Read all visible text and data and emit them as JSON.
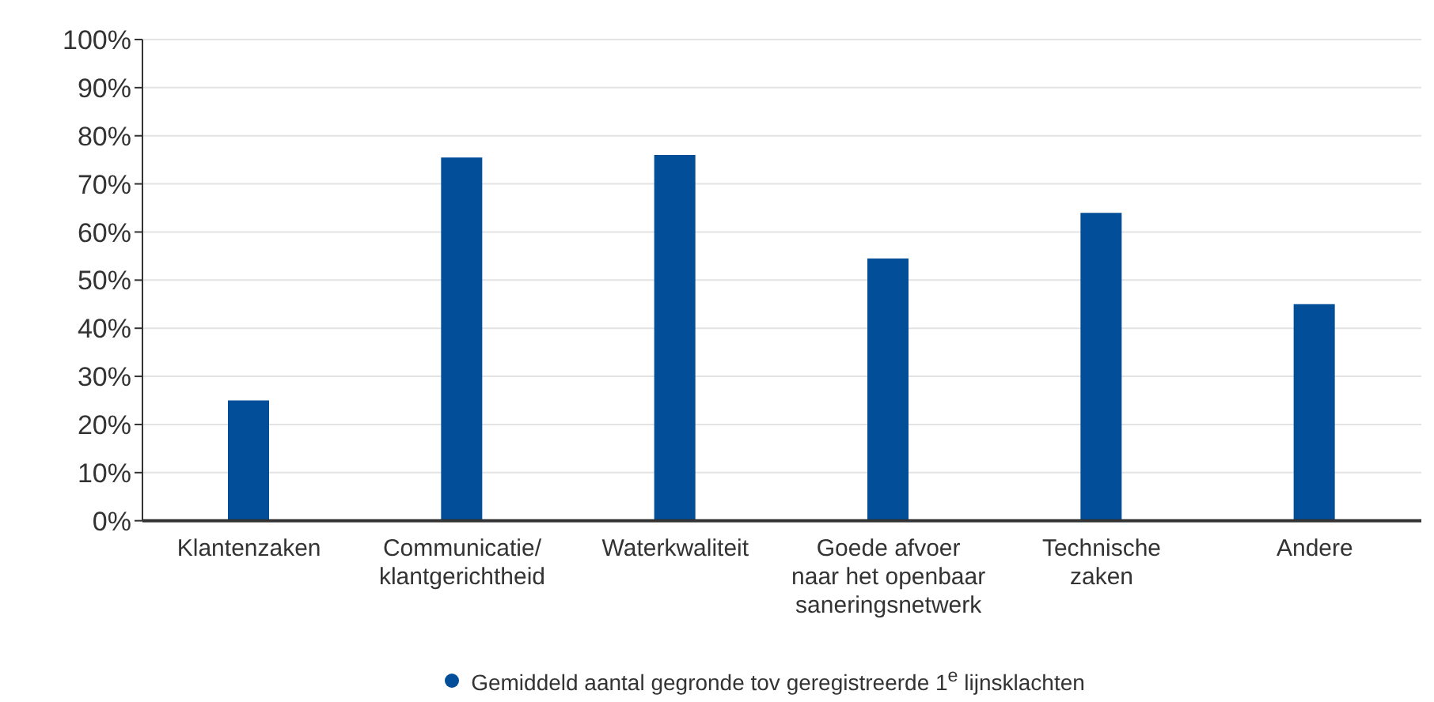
{
  "chart_data": {
    "type": "bar",
    "categories": [
      "Klantenzaken",
      "Communicatie/\nklantgerichtheid",
      "Waterkwaliteit",
      "Goede afvoer\nnaar het openbaar\nsaneringsnetwerk",
      "Technische\nzaken",
      "Andere"
    ],
    "series": [
      {
        "name": "Gemiddeld aantal gegronde tov geregistreerde 1$^{e}$ lijnsklachten",
        "color": "#024e99",
        "values": [
          25,
          75.5,
          76,
          54.5,
          64,
          45
        ]
      }
    ],
    "ylim": [
      0,
      100
    ],
    "yticks": [
      {
        "value": 0,
        "label": "0%"
      },
      {
        "value": 10,
        "label": "10%"
      },
      {
        "value": 20,
        "label": "20%"
      },
      {
        "value": 30,
        "label": "30%"
      },
      {
        "value": 40,
        "label": "40%"
      },
      {
        "value": 50,
        "label": "50%"
      },
      {
        "value": 60,
        "label": "60%"
      },
      {
        "value": 70,
        "label": "70%"
      },
      {
        "value": 80,
        "label": "80%"
      },
      {
        "value": 90,
        "label": "90%"
      },
      {
        "value": 100,
        "label": "100%"
      }
    ],
    "grid": "y",
    "legend": "bottom",
    "marker": "circle"
  }
}
